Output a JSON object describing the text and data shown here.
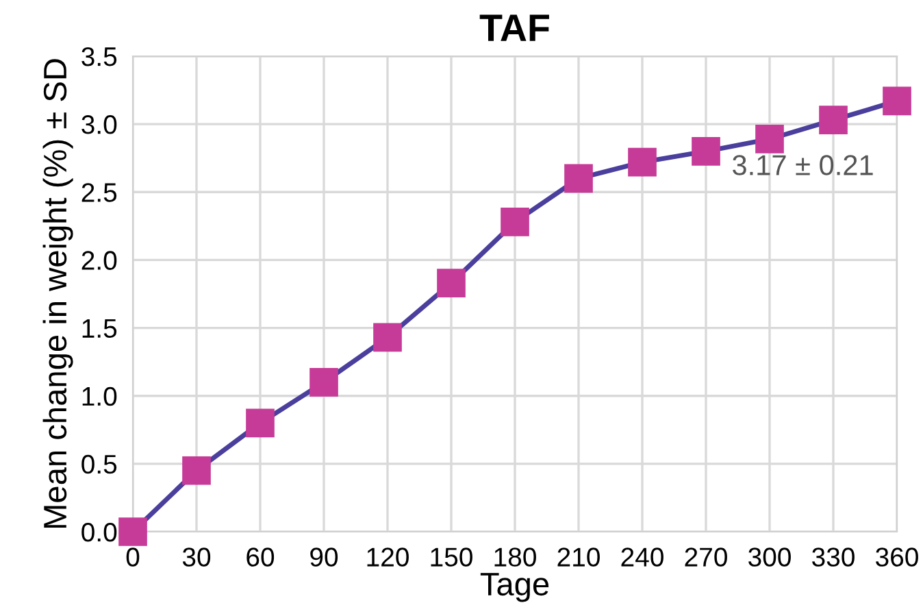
{
  "chart_data": {
    "type": "line",
    "title": "TAF",
    "xlabel": "Tage",
    "ylabel": "Mean change in weight (%) ± SD",
    "x": [
      0,
      30,
      60,
      90,
      120,
      150,
      180,
      210,
      240,
      270,
      300,
      330,
      360
    ],
    "series": [
      {
        "color": "#4a3f9c",
        "colors": [
          "#c63b98",
          "#c63b98",
          "#c63b98",
          "#c63b98",
          "#c63b98",
          "#c63b98",
          "#c63b98",
          "#c63b98",
          "#c63b98",
          "#c63b98",
          "#c63b98",
          "#c63b98",
          "#c63b98"
        ],
        "values": [
          0,
          0.45,
          0.8,
          1.1,
          1.43,
          1.83,
          2.28,
          2.6,
          2.72,
          2.8,
          2.89,
          3.03,
          3.17
        ]
      }
    ],
    "annotations": [
      {
        "text": "3.17 ± 0.21",
        "x": 360,
        "y": 3.17
      }
    ],
    "xlim": [
      0,
      360
    ],
    "xticks": [
      0,
      30,
      60,
      90,
      120,
      150,
      180,
      210,
      240,
      270,
      300,
      330,
      360
    ],
    "ylim": [
      0,
      3.5
    ],
    "yticks": [
      {
        "value": 0,
        "label": "0.0"
      },
      {
        "value": 0.5,
        "label": "0.5"
      },
      {
        "value": 1,
        "label": "1.0"
      },
      {
        "value": 1.5,
        "label": "1.5"
      },
      {
        "value": 2,
        "label": "2.0"
      },
      {
        "value": 2.5,
        "label": "2.5"
      },
      {
        "value": 3,
        "label": "3.0"
      },
      {
        "value": 3.5,
        "label": "3.5"
      }
    ],
    "grid": true,
    "marker": "square",
    "line_style": "solid",
    "legend": false
  }
}
